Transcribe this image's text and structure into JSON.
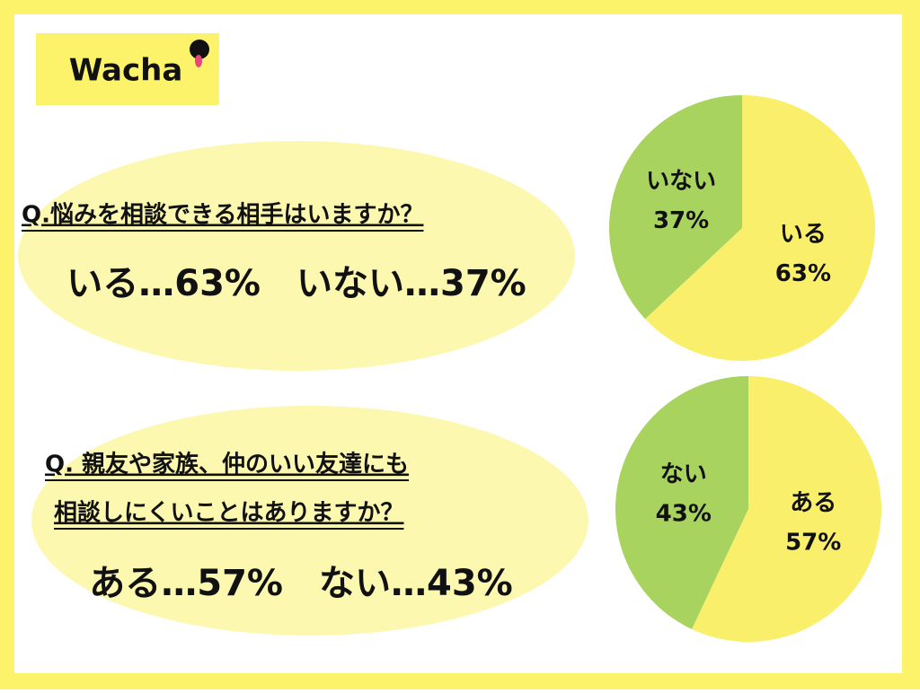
{
  "logo": "Wacha",
  "questions": [
    {
      "lines": [
        "Q.悩みを相談できる相手はいますか？"
      ],
      "summary": "いる…63%　いない…37%"
    },
    {
      "lines": [
        "Q. 親友や家族、仲のいい友達にも",
        "相談しにくいことはありますか？"
      ],
      "summary": "ある…57%　ない…43%"
    }
  ],
  "chart_data": [
    {
      "type": "pie",
      "categories": [
        "いる",
        "いない"
      ],
      "values": [
        63,
        37
      ],
      "value_labels": [
        "63%",
        "37%"
      ],
      "colors": [
        "#f9ef6a",
        "#a9d35f"
      ]
    },
    {
      "type": "pie",
      "categories": [
        "ある",
        "ない"
      ],
      "values": [
        57,
        43
      ],
      "value_labels": [
        "57%",
        "43%"
      ],
      "colors": [
        "#f9ef6a",
        "#a9d35f"
      ]
    }
  ]
}
